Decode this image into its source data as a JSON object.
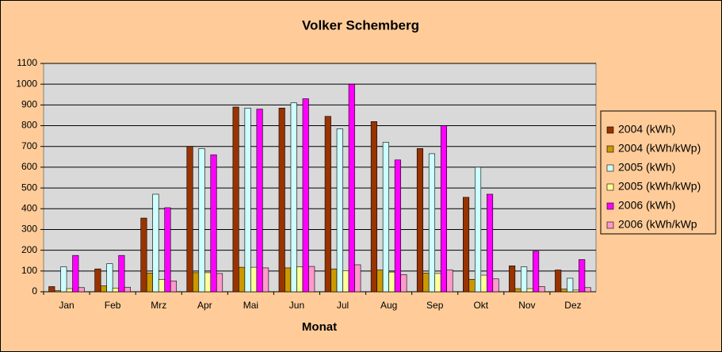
{
  "chart_data": {
    "type": "bar",
    "title": "Volker Schemberg",
    "x_label": "Monat",
    "categories": [
      "Jan",
      "Feb",
      "Mrz",
      "Apr",
      "Mai",
      "Jun",
      "Jul",
      "Aug",
      "Sep",
      "Okt",
      "Nov",
      "Dez"
    ],
    "series": [
      {
        "name": "2004 (kWh)",
        "color": "#993300",
        "values": [
          25,
          110,
          355,
          700,
          890,
          885,
          845,
          820,
          690,
          455,
          125,
          105
        ]
      },
      {
        "name": "2004 (kWh/kWp)",
        "color": "#cc9900",
        "values": [
          5,
          28,
          90,
          92,
          118,
          115,
          110,
          105,
          90,
          60,
          15,
          13
        ]
      },
      {
        "name": "2005 (kWh)",
        "color": "#ccffff",
        "values": [
          120,
          135,
          470,
          690,
          885,
          910,
          785,
          720,
          665,
          600,
          120,
          65
        ]
      },
      {
        "name": "2005 (kWh/kWp)",
        "color": "#ffff99",
        "values": [
          15,
          18,
          60,
          92,
          118,
          120,
          102,
          95,
          88,
          80,
          15,
          8
        ]
      },
      {
        "name": "2006 (kWh)",
        "color": "#ff00ff",
        "values": [
          175,
          175,
          405,
          660,
          880,
          930,
          1000,
          635,
          800,
          470,
          195,
          155
        ]
      },
      {
        "name": "2006 (kWh/kWp",
        "color": "#ff99cc",
        "values": [
          20,
          22,
          52,
          88,
          115,
          122,
          130,
          83,
          105,
          62,
          25,
          20
        ]
      }
    ],
    "ylim": [
      0,
      1100
    ],
    "yticks": [
      0,
      100,
      200,
      300,
      400,
      500,
      600,
      700,
      800,
      900,
      1000,
      1100
    ],
    "grid": true,
    "legend": "right"
  }
}
